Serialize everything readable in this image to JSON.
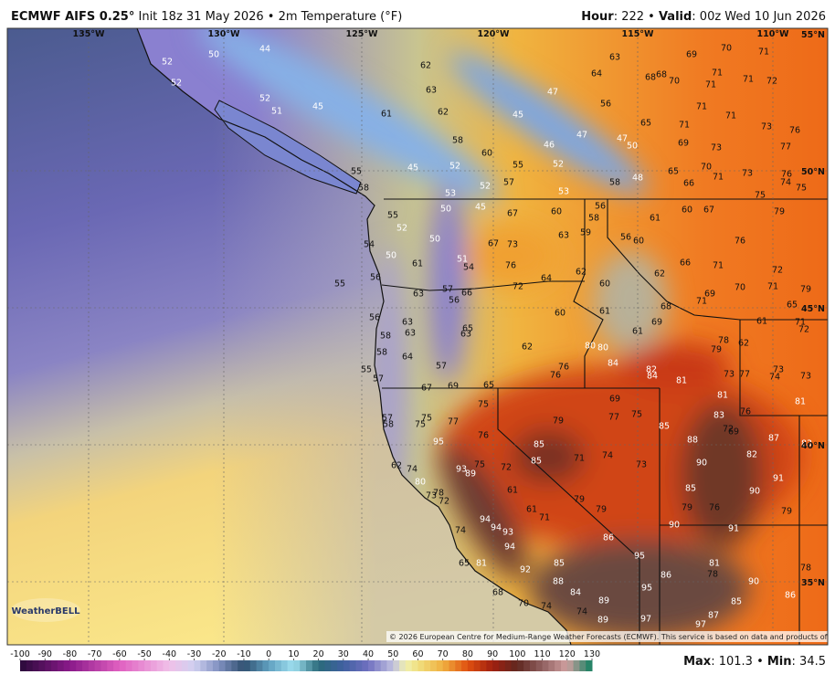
{
  "header": {
    "left": [
      {
        "text": "ECMWF AIFS 0.25°",
        "bold": true
      },
      {
        "text": " Init 18z 31 May 2026 • 2m Temperature (°F)"
      }
    ],
    "right": [
      {
        "text": "Hour",
        "bold": true
      },
      {
        "text": ": 222 • "
      },
      {
        "text": "Valid",
        "bold": true
      },
      {
        "text": ": 00z Wed 10 Jun 2026"
      }
    ]
  },
  "map": {
    "longitude_labels": [
      "135°W",
      "130°W",
      "125°W",
      "120°W",
      "115°W",
      "110°W"
    ],
    "latitude_labels": [
      "55°N",
      "50°N",
      "45°N",
      "40°N",
      "35°N"
    ],
    "temperatures": [
      52,
      52,
      50,
      44,
      52,
      51,
      45,
      62,
      63,
      61,
      62,
      64,
      63,
      69,
      70,
      71,
      68,
      68,
      70,
      71,
      71,
      71,
      72,
      47,
      45,
      56,
      65,
      71,
      71,
      71,
      73,
      76,
      58,
      60,
      52,
      55,
      52,
      46,
      47,
      47,
      50,
      69,
      73,
      77,
      45,
      55,
      58,
      53,
      52,
      57,
      53,
      58,
      48,
      65,
      70,
      71,
      66,
      73,
      76,
      74,
      75,
      75,
      50,
      45,
      67,
      60,
      56,
      58,
      61,
      60,
      67,
      79,
      55,
      52,
      50,
      59,
      56,
      60,
      63,
      54,
      67,
      73,
      76,
      51,
      54,
      76,
      50,
      61,
      66,
      71,
      72,
      56,
      55,
      62,
      64,
      72,
      57,
      66,
      56,
      63,
      60,
      62,
      79,
      69,
      70,
      71,
      65,
      71,
      68,
      63,
      56,
      61,
      60,
      61,
      71,
      72,
      63,
      58,
      65,
      63,
      61,
      69,
      58,
      62,
      64,
      78,
      62,
      79,
      80,
      80,
      84,
      82,
      84,
      55,
      57,
      76,
      76,
      81,
      73,
      77,
      73,
      74,
      73,
      57,
      67,
      69,
      65,
      81,
      81,
      75,
      69,
      75,
      77,
      83,
      76,
      72,
      69,
      57,
      58,
      75,
      75,
      77,
      76,
      79,
      85,
      88,
      87,
      83,
      95,
      85,
      85,
      71,
      74,
      73,
      90,
      82,
      62,
      74,
      75,
      93,
      89,
      72,
      91,
      80,
      85,
      90,
      61,
      73,
      78,
      72,
      79,
      79,
      79,
      76,
      61,
      71,
      79,
      90,
      91,
      94,
      94,
      93,
      74,
      94,
      86,
      95,
      65,
      81,
      92,
      85,
      81,
      78,
      86,
      90,
      78,
      88,
      84,
      95,
      68,
      89,
      85,
      86,
      70,
      74,
      74,
      89,
      97,
      97,
      87
    ],
    "copyright": "© 2026 European Centre for Medium-Range Weather Forecasts (ECMWF). This service is based on data and products of the ECMWF.",
    "logo": "WeatherBELL"
  },
  "colorbar": {
    "ticks": [
      -100,
      -90,
      -80,
      -70,
      -60,
      -50,
      -40,
      -30,
      -20,
      -10,
      0,
      10,
      20,
      30,
      40,
      50,
      60,
      70,
      80,
      90,
      100,
      110,
      120,
      130
    ]
  },
  "footer": [
    {
      "text": "Max",
      "bold": true
    },
    {
      "text": ": 101.3 • "
    },
    {
      "text": "Min",
      "bold": true
    },
    {
      "text": ": 34.5"
    }
  ]
}
